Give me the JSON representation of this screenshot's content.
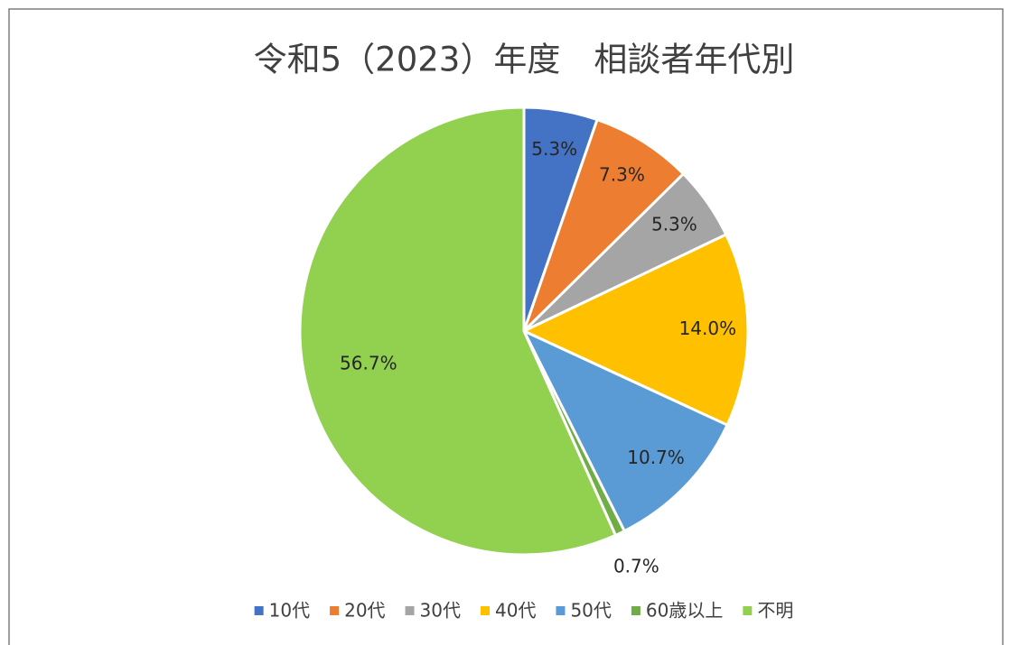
{
  "chart_data": {
    "type": "pie",
    "title": "令和5（2023）年度　相談者年代別",
    "categories": [
      "10代",
      "20代",
      "30代",
      "40代",
      "50代",
      "60歳以上",
      "不明"
    ],
    "values": [
      5.3,
      7.3,
      5.3,
      14.0,
      10.7,
      0.7,
      56.7
    ],
    "value_labels": [
      "5.3%",
      "7.3%",
      "5.3%",
      "14.0%",
      "10.7%",
      "0.7%",
      "56.7%"
    ],
    "colors": [
      "#4472c4",
      "#ed7d31",
      "#a5a5a5",
      "#ffc000",
      "#5b9bd5",
      "#70ad47",
      "#92d050"
    ],
    "legend": "bottom"
  }
}
